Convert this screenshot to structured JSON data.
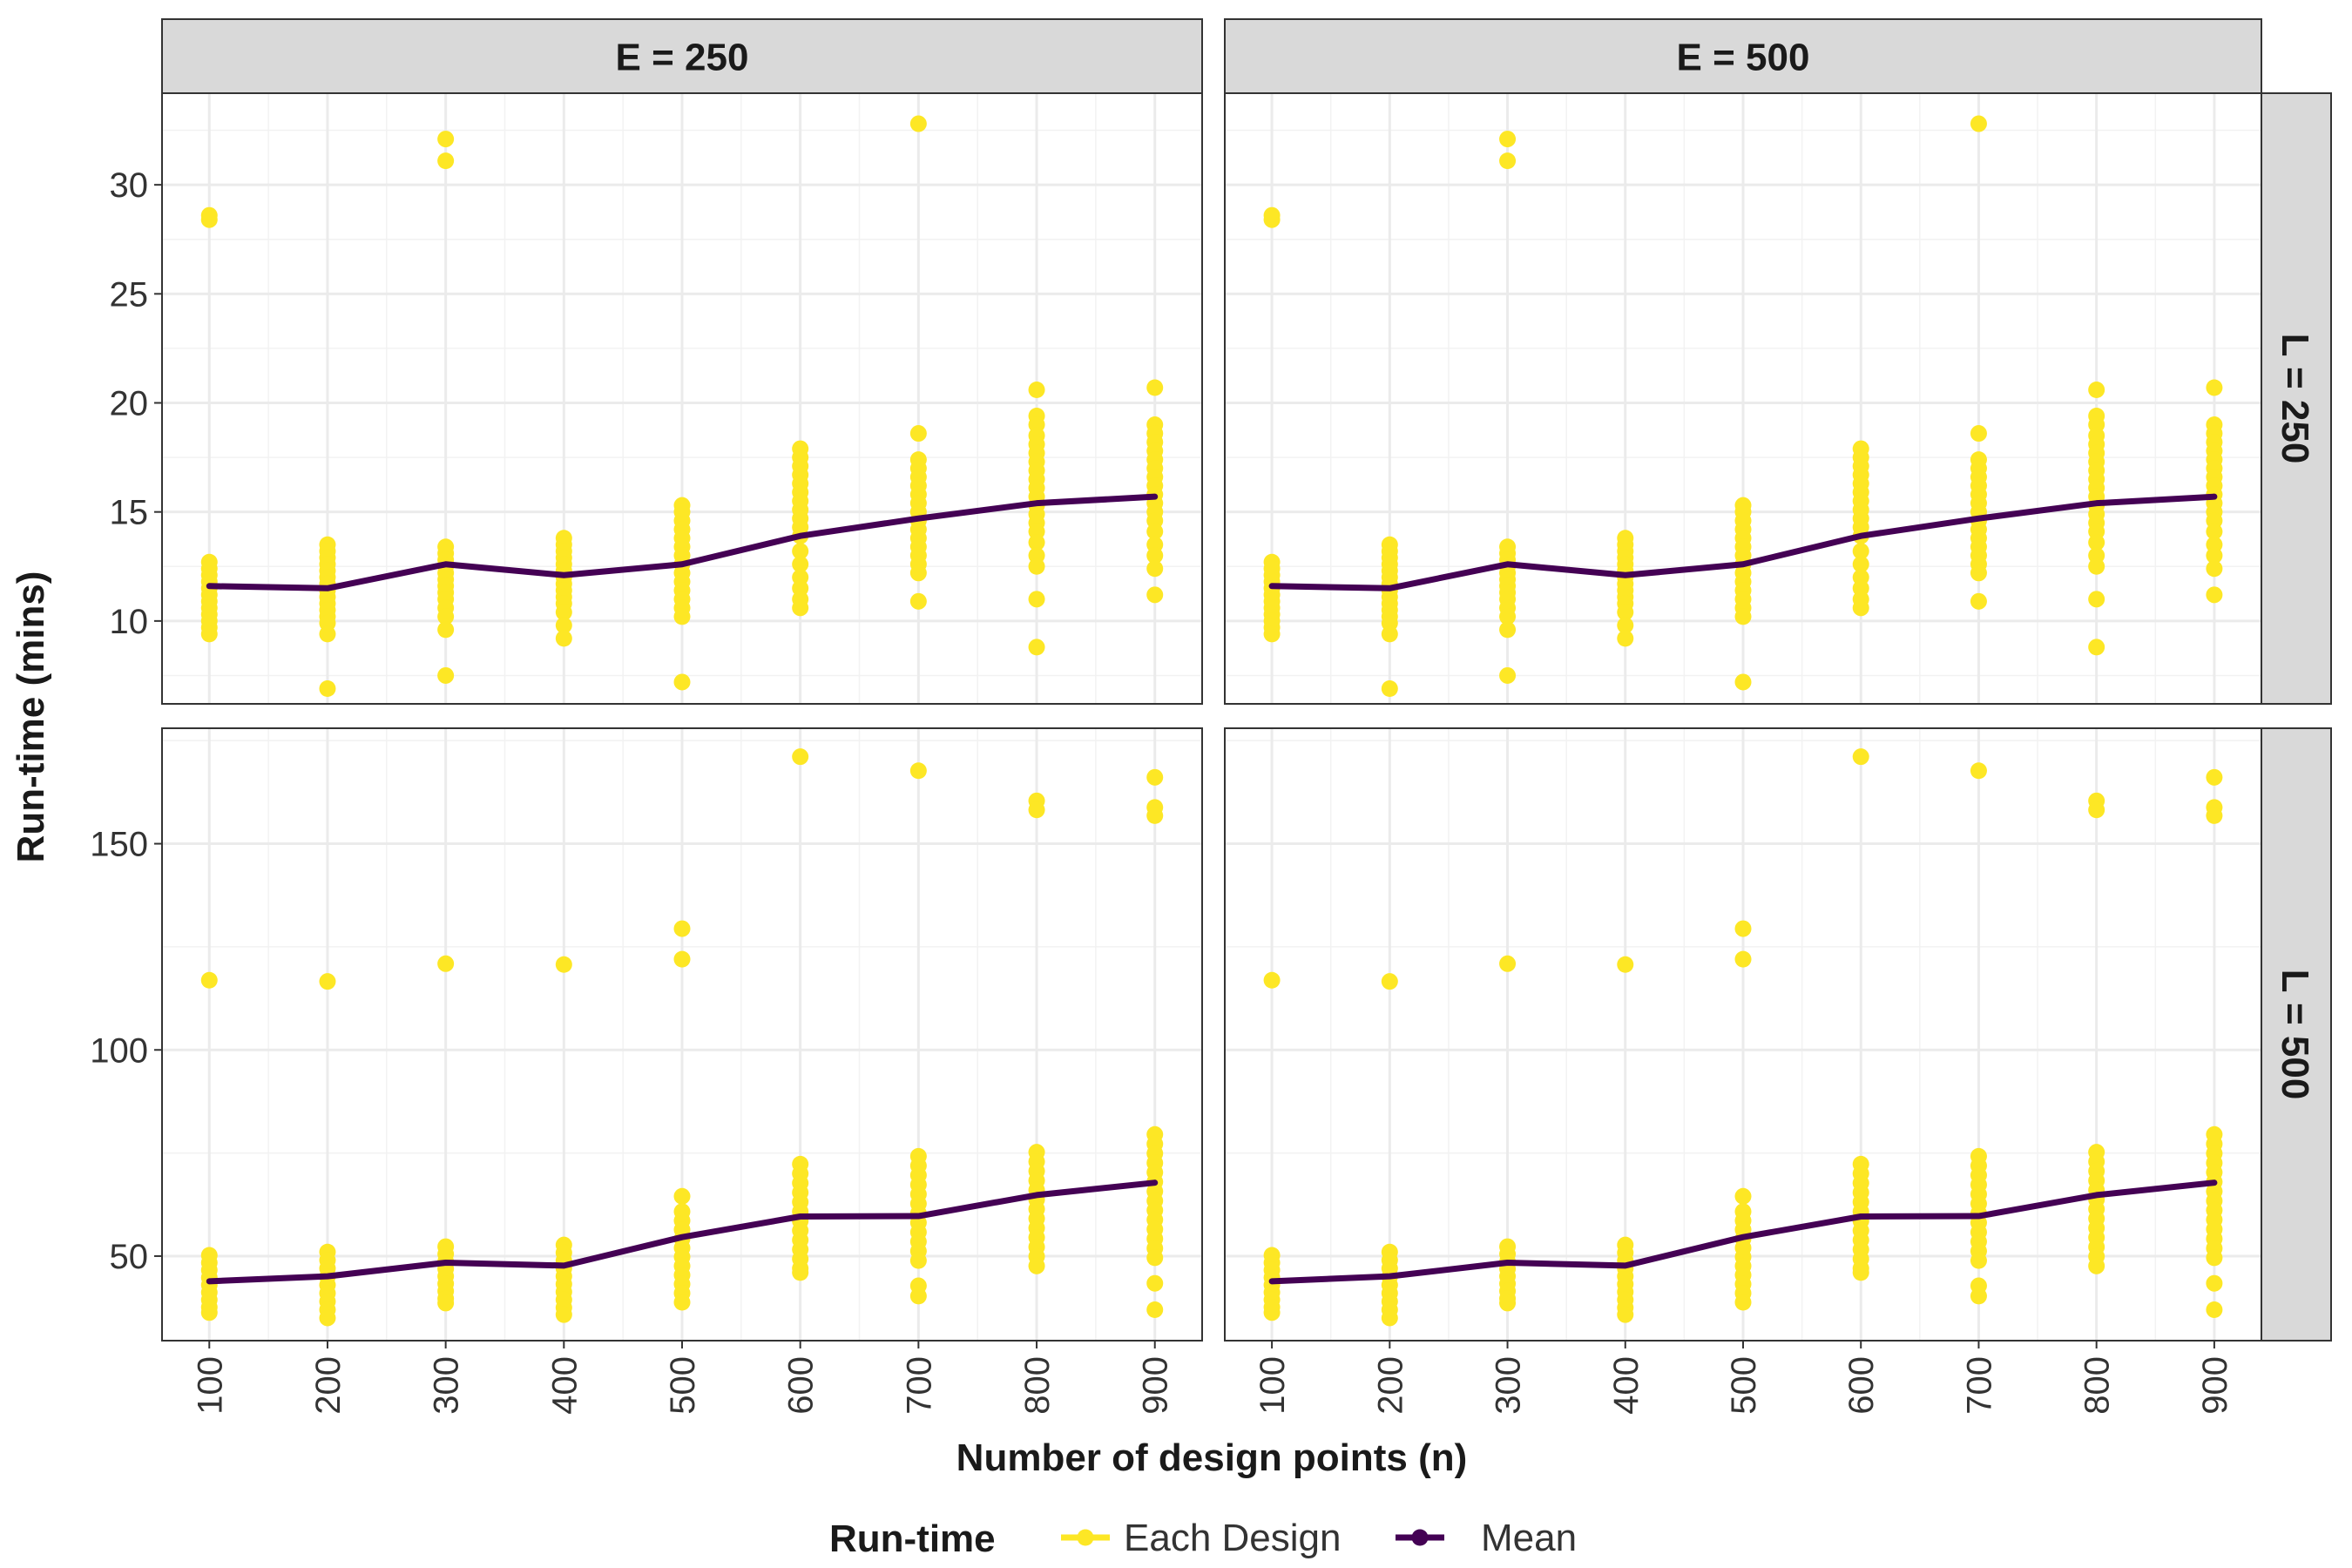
{
  "chart_data": {
    "type": "scatter",
    "facets": {
      "columns": [
        "E = 250",
        "E = 500"
      ],
      "rows": [
        "L = 250",
        "L = 500"
      ]
    },
    "xlabel": "Number of design points (n)",
    "ylabel": "Run-time (mins)",
    "x_ticks": [
      100,
      200,
      300,
      400,
      500,
      600,
      700,
      800,
      900
    ],
    "grid": true,
    "legend": {
      "title": "Run-time",
      "position": "bottom",
      "items": [
        {
          "label": "Each Design",
          "color": "#FDE725"
        },
        {
          "label": "Mean",
          "color": "#440154"
        }
      ]
    },
    "panel_rows": [
      {
        "row_label": "L = 250",
        "ylim": [
          6.2,
          34.2
        ],
        "y_ticks": [
          10,
          15,
          20,
          25,
          30
        ],
        "mean": {
          "x": [
            100,
            200,
            300,
            400,
            500,
            600,
            700,
            800,
            900
          ],
          "y": [
            11.6,
            11.5,
            12.6,
            12.1,
            12.6,
            13.9,
            14.7,
            15.4,
            15.7
          ]
        },
        "each_design": [
          {
            "x": 100,
            "y": [
              28.6,
              28.4,
              12.7,
              12.4,
              12.1,
              11.8,
              11.5,
              11.2,
              10.9,
              10.6,
              10.3,
              10.0,
              9.7,
              9.4
            ]
          },
          {
            "x": 200,
            "y": [
              13.5,
              13.2,
              12.9,
              12.6,
              12.3,
              12.0,
              11.7,
              11.4,
              11.1,
              10.8,
              10.5,
              10.2,
              9.9,
              9.4,
              6.9
            ]
          },
          {
            "x": 300,
            "y": [
              32.1,
              31.1,
              13.4,
              13.1,
              12.8,
              12.5,
              12.2,
              11.9,
              11.6,
              11.3,
              11.0,
              10.6,
              10.2,
              9.6,
              7.5
            ]
          },
          {
            "x": 400,
            "y": [
              13.8,
              13.5,
              13.2,
              12.9,
              12.6,
              12.3,
              12.0,
              11.7,
              11.4,
              11.1,
              10.8,
              10.4,
              9.8,
              9.2
            ]
          },
          {
            "x": 500,
            "y": [
              15.3,
              15.0,
              14.6,
              14.2,
              13.8,
              13.4,
              13.0,
              12.6,
              12.2,
              11.8,
              11.4,
              11.0,
              10.6,
              10.2,
              7.2
            ]
          },
          {
            "x": 600,
            "y": [
              17.9,
              17.5,
              17.1,
              16.7,
              16.3,
              15.9,
              15.5,
              15.1,
              14.7,
              14.3,
              13.9,
              13.2,
              12.6,
              12.0,
              11.5,
              11.0,
              10.6
            ]
          },
          {
            "x": 700,
            "y": [
              32.8,
              18.6,
              17.4,
              17.0,
              16.6,
              16.2,
              15.8,
              15.4,
              15.0,
              14.6,
              14.2,
              13.8,
              13.4,
              13.0,
              12.6,
              12.2,
              10.9
            ]
          },
          {
            "x": 800,
            "y": [
              20.6,
              19.4,
              19.0,
              18.5,
              18.1,
              17.7,
              17.3,
              16.9,
              16.5,
              16.1,
              15.7,
              15.3,
              14.9,
              14.5,
              14.1,
              13.6,
              13.0,
              12.5,
              11.0,
              8.8
            ]
          },
          {
            "x": 900,
            "y": [
              20.7,
              19.0,
              18.6,
              18.2,
              17.8,
              17.4,
              17.0,
              16.6,
              16.2,
              15.8,
              15.4,
              15.0,
              14.6,
              14.1,
              13.5,
              13.0,
              12.4,
              11.2
            ]
          }
        ]
      },
      {
        "row_label": "L = 500",
        "ylim": [
          29.5,
          178
        ],
        "y_ticks": [
          50,
          100,
          150
        ],
        "mean": {
          "x": [
            100,
            200,
            300,
            400,
            500,
            600,
            700,
            800,
            900
          ],
          "y": [
            43.9,
            45.1,
            48.4,
            47.7,
            54.6,
            59.6,
            59.7,
            64.8,
            67.8
          ]
        },
        "each_design": [
          {
            "x": 100,
            "y": [
              116.9,
              50.2,
              48.4,
              46.6,
              44.8,
              43.0,
              41.2,
              39.4,
              37.6,
              36.3
            ]
          },
          {
            "x": 200,
            "y": [
              116.6,
              51.0,
              49.0,
              47.0,
              45.0,
              43.0,
              41.0,
              39.0,
              37.0,
              35.0
            ]
          },
          {
            "x": 300,
            "y": [
              120.9,
              52.3,
              50.5,
              48.7,
              46.9,
              45.1,
              43.3,
              41.5,
              39.7,
              38.6
            ]
          },
          {
            "x": 400,
            "y": [
              120.7,
              52.7,
              50.8,
              48.9,
              47.0,
              45.1,
              43.2,
              41.3,
              39.4,
              37.5,
              35.8
            ]
          },
          {
            "x": 500,
            "y": [
              129.4,
              122.0,
              64.5,
              60.8,
              58.6,
              56.4,
              54.2,
              52.0,
              49.8,
              47.6,
              45.4,
              43.2,
              41.0,
              38.8
            ]
          },
          {
            "x": 600,
            "y": [
              171.1,
              72.3,
              70.0,
              67.7,
              65.4,
              63.1,
              60.8,
              58.5,
              56.2,
              53.9,
              51.6,
              49.3,
              47.0,
              46.0
            ]
          },
          {
            "x": 700,
            "y": [
              167.7,
              74.2,
              71.9,
              69.6,
              67.3,
              65.0,
              62.7,
              60.4,
              58.1,
              55.8,
              53.5,
              51.2,
              48.9,
              42.8,
              40.3
            ]
          },
          {
            "x": 800,
            "y": [
              160.4,
              158.2,
              75.2,
              72.9,
              70.6,
              68.3,
              66.0,
              63.7,
              61.4,
              59.1,
              56.8,
              54.5,
              52.2,
              49.9,
              47.6
            ]
          },
          {
            "x": 900,
            "y": [
              166.1,
              158.8,
              156.8,
              79.5,
              77.2,
              74.9,
              72.6,
              70.3,
              68.0,
              65.7,
              63.4,
              61.1,
              58.8,
              56.5,
              54.2,
              51.9,
              49.6,
              43.4,
              37.0
            ]
          }
        ]
      }
    ]
  }
}
